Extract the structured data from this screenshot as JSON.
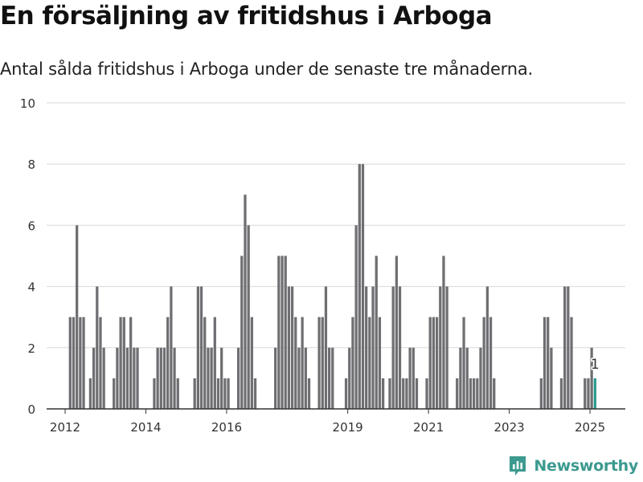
{
  "title": "En försäljning av fritidshus i Arboga",
  "subtitle": "Antal sålda fritidshus i Arboga under de senaste tre månaderna.",
  "brand": {
    "name": "Newsworthy",
    "icon": "newsworthy-logo-icon",
    "color": "#3c9a90"
  },
  "colors": {
    "bar": "#6f6e72",
    "highlight": "#2a9a8c",
    "grid": "#d9d9d9",
    "axis": "#333333",
    "tick_text": "#333333"
  },
  "chart_data": {
    "type": "bar",
    "title": "En försäljning av fritidshus i Arboga",
    "subtitle": "Antal sålda fritidshus i Arboga under de senaste tre månaderna.",
    "xlabel": "",
    "ylabel": "",
    "ylim": [
      0,
      10
    ],
    "yticks": [
      0,
      2,
      4,
      6,
      8,
      10
    ],
    "xlim": [
      "2011-07",
      "2025-11"
    ],
    "xticks": [
      {
        "value": "2012-01",
        "label": "2012"
      },
      {
        "value": "2014-01",
        "label": "2014"
      },
      {
        "value": "2016-01",
        "label": "2016"
      },
      {
        "value": "2019-01",
        "label": "2019"
      },
      {
        "value": "2021-01",
        "label": "2021"
      },
      {
        "value": "2023-01",
        "label": "2023"
      },
      {
        "value": "2025-01",
        "label": "2025"
      }
    ],
    "grid": true,
    "bars": [
      {
        "x": "2012-02",
        "y": 3
      },
      {
        "x": "2012-03",
        "y": 3
      },
      {
        "x": "2012-04",
        "y": 6
      },
      {
        "x": "2012-05",
        "y": 3
      },
      {
        "x": "2012-06",
        "y": 3
      },
      {
        "x": "2012-07",
        "y": 0
      },
      {
        "x": "2012-08",
        "y": 1
      },
      {
        "x": "2012-09",
        "y": 2
      },
      {
        "x": "2012-10",
        "y": 4
      },
      {
        "x": "2012-11",
        "y": 3
      },
      {
        "x": "2012-12",
        "y": 2
      },
      {
        "x": "2013-03",
        "y": 1
      },
      {
        "x": "2013-04",
        "y": 2
      },
      {
        "x": "2013-05",
        "y": 3
      },
      {
        "x": "2013-06",
        "y": 3
      },
      {
        "x": "2013-07",
        "y": 2
      },
      {
        "x": "2013-08",
        "y": 3
      },
      {
        "x": "2013-09",
        "y": 2
      },
      {
        "x": "2013-10",
        "y": 2
      },
      {
        "x": "2014-03",
        "y": 1
      },
      {
        "x": "2014-04",
        "y": 2
      },
      {
        "x": "2014-05",
        "y": 2
      },
      {
        "x": "2014-06",
        "y": 2
      },
      {
        "x": "2014-07",
        "y": 3
      },
      {
        "x": "2014-08",
        "y": 4
      },
      {
        "x": "2014-09",
        "y": 2
      },
      {
        "x": "2014-10",
        "y": 1
      },
      {
        "x": "2015-03",
        "y": 1
      },
      {
        "x": "2015-04",
        "y": 4
      },
      {
        "x": "2015-05",
        "y": 4
      },
      {
        "x": "2015-06",
        "y": 3
      },
      {
        "x": "2015-07",
        "y": 2
      },
      {
        "x": "2015-08",
        "y": 2
      },
      {
        "x": "2015-09",
        "y": 3
      },
      {
        "x": "2015-10",
        "y": 1
      },
      {
        "x": "2015-11",
        "y": 2
      },
      {
        "x": "2015-12",
        "y": 1
      },
      {
        "x": "2016-01",
        "y": 1
      },
      {
        "x": "2016-04",
        "y": 2
      },
      {
        "x": "2016-05",
        "y": 5
      },
      {
        "x": "2016-06",
        "y": 7
      },
      {
        "x": "2016-07",
        "y": 6
      },
      {
        "x": "2016-08",
        "y": 3
      },
      {
        "x": "2016-09",
        "y": 1
      },
      {
        "x": "2017-03",
        "y": 2
      },
      {
        "x": "2017-04",
        "y": 5
      },
      {
        "x": "2017-05",
        "y": 5
      },
      {
        "x": "2017-06",
        "y": 5
      },
      {
        "x": "2017-07",
        "y": 4
      },
      {
        "x": "2017-08",
        "y": 4
      },
      {
        "x": "2017-09",
        "y": 3
      },
      {
        "x": "2017-10",
        "y": 2
      },
      {
        "x": "2017-11",
        "y": 3
      },
      {
        "x": "2017-12",
        "y": 2
      },
      {
        "x": "2018-01",
        "y": 1
      },
      {
        "x": "2018-04",
        "y": 3
      },
      {
        "x": "2018-05",
        "y": 3
      },
      {
        "x": "2018-06",
        "y": 4
      },
      {
        "x": "2018-07",
        "y": 2
      },
      {
        "x": "2018-08",
        "y": 2
      },
      {
        "x": "2018-12",
        "y": 1
      },
      {
        "x": "2019-01",
        "y": 2
      },
      {
        "x": "2019-02",
        "y": 3
      },
      {
        "x": "2019-03",
        "y": 6
      },
      {
        "x": "2019-04",
        "y": 8
      },
      {
        "x": "2019-05",
        "y": 8
      },
      {
        "x": "2019-06",
        "y": 4
      },
      {
        "x": "2019-07",
        "y": 3
      },
      {
        "x": "2019-08",
        "y": 4
      },
      {
        "x": "2019-09",
        "y": 5
      },
      {
        "x": "2019-10",
        "y": 3
      },
      {
        "x": "2019-11",
        "y": 1
      },
      {
        "x": "2020-01",
        "y": 1
      },
      {
        "x": "2020-02",
        "y": 4
      },
      {
        "x": "2020-03",
        "y": 5
      },
      {
        "x": "2020-04",
        "y": 4
      },
      {
        "x": "2020-05",
        "y": 1
      },
      {
        "x": "2020-06",
        "y": 1
      },
      {
        "x": "2020-07",
        "y": 2
      },
      {
        "x": "2020-08",
        "y": 2
      },
      {
        "x": "2020-09",
        "y": 1
      },
      {
        "x": "2020-12",
        "y": 1
      },
      {
        "x": "2021-01",
        "y": 3
      },
      {
        "x": "2021-02",
        "y": 3
      },
      {
        "x": "2021-03",
        "y": 3
      },
      {
        "x": "2021-04",
        "y": 4
      },
      {
        "x": "2021-05",
        "y": 5
      },
      {
        "x": "2021-06",
        "y": 4
      },
      {
        "x": "2021-09",
        "y": 1
      },
      {
        "x": "2021-10",
        "y": 2
      },
      {
        "x": "2021-11",
        "y": 3
      },
      {
        "x": "2021-12",
        "y": 2
      },
      {
        "x": "2022-01",
        "y": 1
      },
      {
        "x": "2022-02",
        "y": 1
      },
      {
        "x": "2022-03",
        "y": 1
      },
      {
        "x": "2022-04",
        "y": 2
      },
      {
        "x": "2022-05",
        "y": 3
      },
      {
        "x": "2022-06",
        "y": 4
      },
      {
        "x": "2022-07",
        "y": 3
      },
      {
        "x": "2022-08",
        "y": 1
      },
      {
        "x": "2023-10",
        "y": 1
      },
      {
        "x": "2023-11",
        "y": 3
      },
      {
        "x": "2023-12",
        "y": 3
      },
      {
        "x": "2024-01",
        "y": 2
      },
      {
        "x": "2024-04",
        "y": 1
      },
      {
        "x": "2024-05",
        "y": 4
      },
      {
        "x": "2024-06",
        "y": 4
      },
      {
        "x": "2024-07",
        "y": 3
      },
      {
        "x": "2024-11",
        "y": 1
      },
      {
        "x": "2024-12",
        "y": 1
      },
      {
        "x": "2025-01",
        "y": 2
      },
      {
        "x": "2025-02",
        "y": 1,
        "highlight": true,
        "label": "1"
      }
    ]
  }
}
